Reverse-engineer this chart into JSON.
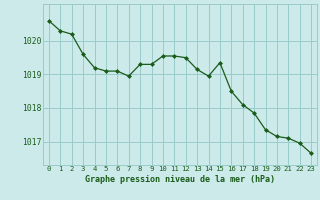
{
  "x": [
    0,
    1,
    2,
    3,
    4,
    5,
    6,
    7,
    8,
    9,
    10,
    11,
    12,
    13,
    14,
    15,
    16,
    17,
    18,
    19,
    20,
    21,
    22,
    23
  ],
  "y": [
    1020.6,
    1020.3,
    1020.2,
    1019.6,
    1019.2,
    1019.1,
    1019.1,
    1018.95,
    1019.3,
    1019.3,
    1019.55,
    1019.55,
    1019.5,
    1019.15,
    1018.95,
    1019.35,
    1018.5,
    1018.1,
    1017.85,
    1017.35,
    1017.15,
    1017.1,
    1016.95,
    1016.65
  ],
  "line_color": "#1a5c1a",
  "marker": "D",
  "marker_size": 2.0,
  "bg_color": "#cceaea",
  "grid_color": "#99cccc",
  "tick_label_color": "#1a5c1a",
  "xlabel": "Graphe pression niveau de la mer (hPa)",
  "ylim": [
    1016.3,
    1021.1
  ],
  "yticks": [
    1017,
    1018,
    1019,
    1020
  ],
  "xticks": [
    0,
    1,
    2,
    3,
    4,
    5,
    6,
    7,
    8,
    9,
    10,
    11,
    12,
    13,
    14,
    15,
    16,
    17,
    18,
    19,
    20,
    21,
    22,
    23
  ],
  "xlabel_color": "#1a5c1a",
  "xlabel_fontsize": 6.0,
  "tick_fontsize": 5.2,
  "ytick_fontsize": 5.8
}
